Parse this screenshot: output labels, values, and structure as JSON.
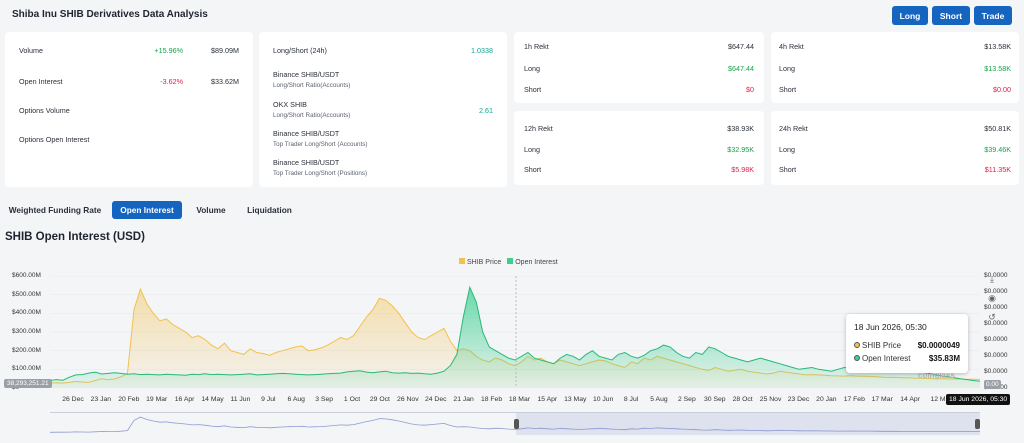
{
  "page": {
    "title": "Shiba Inu SHIB Derivatives Data Analysis"
  },
  "actions": {
    "long": "Long",
    "short": "Short",
    "trade": "Trade"
  },
  "summary_card": {
    "rows": [
      {
        "label": "Volume",
        "change": "+15.96%",
        "value": "$89.09M"
      },
      {
        "label": "Open Interest",
        "change": "-3.62%",
        "value": "$33.62M"
      },
      {
        "label": "Options Volume"
      },
      {
        "label": "Options Open Interest"
      }
    ]
  },
  "ratio_card": {
    "title": "Long/Short (24h)",
    "title_value": "1.0338",
    "items": [
      {
        "label": "Binance SHIB/USDT",
        "sub": "Long/Short Ratio(Accounts)",
        "value": ""
      },
      {
        "label": "OKX SHIB",
        "sub": "Long/Short Ratio(Accounts)",
        "value": "2.61"
      },
      {
        "label": "Binance SHIB/USDT",
        "sub": "Top Trader Long/Short (Accounts)",
        "value": ""
      },
      {
        "label": "Binance SHIB/USDT",
        "sub": "Top Trader Long/Short (Positions)",
        "value": ""
      }
    ]
  },
  "rekt_cards": [
    {
      "title": "1h Rekt",
      "total": "$647.44",
      "long_label": "Long",
      "long": "$647.44",
      "short_label": "Short",
      "short": "$0"
    },
    {
      "title": "4h Rekt",
      "total": "$13.58K",
      "long_label": "Long",
      "long": "$13.58K",
      "short_label": "Short",
      "short": "$0.00"
    },
    {
      "title": "12h Rekt",
      "total": "$38.93K",
      "long_label": "Long",
      "long": "$32.95K",
      "short_label": "Short",
      "short": "$5.98K"
    },
    {
      "title": "24h Rekt",
      "total": "$50.81K",
      "long_label": "Long",
      "long": "$39.46K",
      "short_label": "Short",
      "short": "$11.35K"
    }
  ],
  "tabs": [
    {
      "label": "Weighted Funding Rate",
      "active": false
    },
    {
      "label": "Open Interest",
      "active": true
    },
    {
      "label": "Volume",
      "active": false
    },
    {
      "label": "Liquidation",
      "active": false
    }
  ],
  "chart_section": {
    "title": "SHIB Open Interest (USD)"
  },
  "colors": {
    "price": "#f2c14e",
    "open_interest": "#3ccf8e",
    "accent": "#1565c0"
  },
  "chart_data": {
    "type": "area",
    "legend": [
      "SHIB Price",
      "Open Interest"
    ],
    "legend_position": "top-center",
    "y_left_ticks": [
      "$600.00M",
      "$500.00M",
      "$400.00M",
      "$300.00M",
      "$200.00M",
      "$100.00M",
      "$0"
    ],
    "y_right_ticks": [
      "$0.0000",
      "$0.0000",
      "$0.0000",
      "$0.0000",
      "$0.0000",
      "$0.0000",
      "$0.0000",
      "$0.0000"
    ],
    "x_ticks": [
      "26 Dec",
      "23 Jan",
      "20 Feb",
      "19 Mar",
      "16 Apr",
      "14 May",
      "11 Jun",
      "9 Jul",
      "6 Aug",
      "3 Sep",
      "1 Oct",
      "29 Oct",
      "26 Nov",
      "24 Dec",
      "21 Jan",
      "18 Feb",
      "18 Mar",
      "15 Apr",
      "13 May",
      "10 Jun",
      "8 Jul",
      "5 Aug",
      "2 Sep",
      "30 Sep",
      "28 Oct",
      "25 Nov",
      "23 Dec",
      "20 Jan",
      "17 Feb",
      "17 Mar",
      "14 Apr",
      "12 M"
    ],
    "ylim_left": [
      0,
      600000000
    ],
    "open_interest": [
      40,
      45,
      42,
      58,
      70,
      72,
      80,
      85,
      75,
      78,
      82,
      78,
      74,
      76,
      72,
      74,
      72,
      70,
      74,
      72,
      70,
      68,
      74,
      72,
      76,
      72,
      74,
      72,
      70,
      72,
      74,
      76,
      70,
      72,
      74,
      76,
      78,
      76,
      74,
      72,
      70,
      72,
      74,
      76,
      78,
      80,
      86,
      90,
      92,
      85,
      82,
      86,
      90,
      82,
      80,
      82,
      78,
      80,
      76,
      74,
      80,
      90,
      120,
      180,
      380,
      540,
      460,
      300,
      220,
      200,
      180,
      160,
      150,
      170,
      190,
      160,
      150,
      140,
      130,
      160,
      180,
      170,
      150,
      180,
      200,
      170,
      160,
      150,
      180,
      190,
      170,
      160,
      175,
      200,
      210,
      230,
      220,
      190,
      170,
      160,
      190,
      180,
      220,
      210,
      190,
      170,
      160,
      150,
      140,
      150,
      160,
      150,
      140,
      130,
      120,
      110,
      100,
      105,
      110,
      100,
      95,
      90,
      100,
      110,
      105,
      100,
      95,
      90,
      85,
      95,
      120,
      110,
      100,
      95,
      90,
      85,
      80,
      70,
      65,
      60,
      55,
      50,
      45,
      40,
      36
    ],
    "shib_price": [
      25,
      28,
      26,
      30,
      35,
      32,
      30,
      40,
      50,
      45,
      48,
      60,
      80,
      420,
      530,
      450,
      400,
      360,
      370,
      340,
      320,
      300,
      270,
      280,
      260,
      230,
      210,
      240,
      200,
      190,
      180,
      210,
      190,
      185,
      175,
      190,
      200,
      210,
      220,
      225,
      200,
      205,
      215,
      230,
      250,
      270,
      260,
      280,
      330,
      380,
      420,
      480,
      470,
      440,
      400,
      350,
      300,
      270,
      260,
      280,
      300,
      320,
      250,
      200,
      210,
      200,
      170,
      150,
      140,
      160,
      150,
      130,
      120,
      140,
      170,
      150,
      160,
      140,
      130,
      150,
      140,
      130,
      120,
      130,
      140,
      150,
      145,
      130,
      120,
      110,
      140,
      130,
      160,
      150,
      170,
      160,
      150,
      140,
      130,
      120,
      110,
      100,
      95,
      110,
      100,
      90,
      95,
      100,
      90,
      85,
      80,
      75,
      80,
      90,
      85,
      80,
      75,
      70,
      72,
      70,
      68,
      66,
      65,
      64,
      66,
      64,
      63,
      62,
      60,
      58,
      57,
      56,
      55,
      54,
      53,
      52,
      51,
      50,
      50,
      49,
      48,
      48,
      47,
      47,
      46
    ]
  },
  "tooltip": {
    "date": "18 Jun 2026, 05:30",
    "price_label": "SHIB Price",
    "price_value": "$0.0000049",
    "oi_label": "Open Interest",
    "oi_value": "$35.83M"
  },
  "markers": {
    "left_value": "38,293,251.21",
    "right_value": "0.00",
    "date": "18 Jun 2026, 05:30"
  },
  "watermark": "coinglass",
  "icons": [
    "download-icon",
    "camera-icon",
    "reset-icon"
  ]
}
